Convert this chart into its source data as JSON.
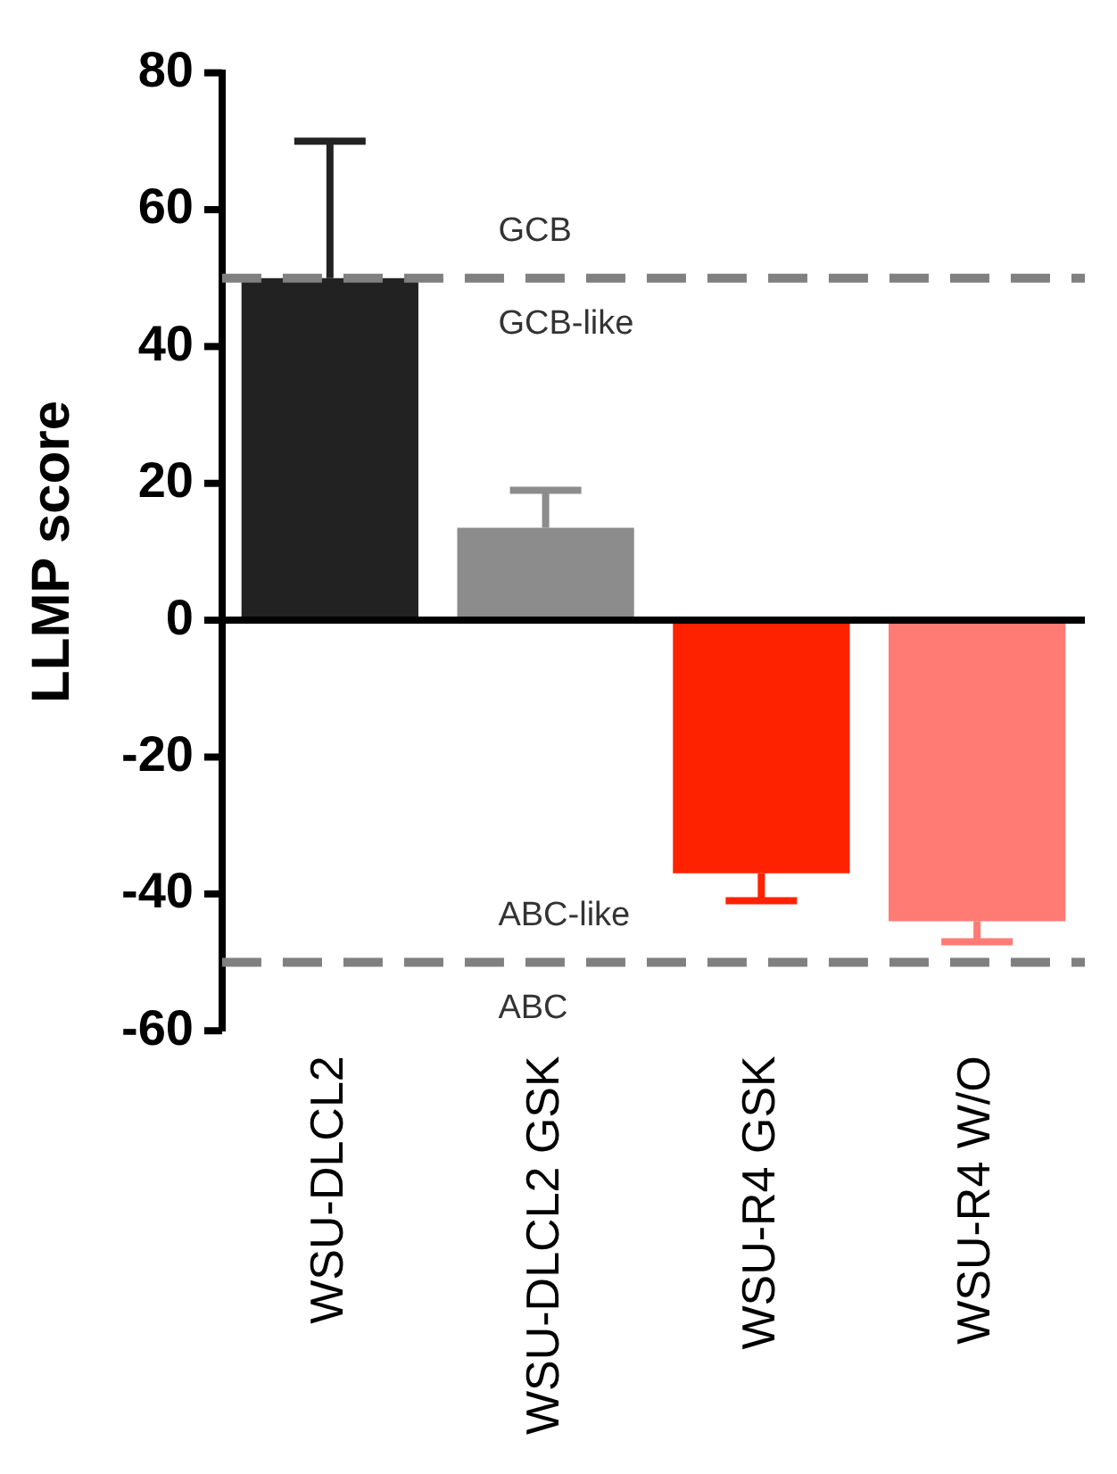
{
  "chart_data": {
    "type": "bar",
    "ylabel": "LLMP score",
    "categories": [
      "WSU-DLCL2",
      "WSU-DLCL2 GSK",
      "WSU-R4 GSK",
      "WSU-R4 W/O"
    ],
    "values": [
      50,
      13.5,
      -37,
      -44
    ],
    "colors": [
      "#222222",
      "#8c8c8c",
      "#ff2200",
      "#ff7b73"
    ],
    "errors": [
      [
        50,
        70
      ],
      [
        13.5,
        19
      ],
      [
        -41,
        -37
      ],
      [
        -47,
        -44
      ]
    ],
    "ylim": [
      -60,
      80
    ],
    "yticks": [
      -60,
      -40,
      -20,
      0,
      20,
      40,
      60,
      80
    ],
    "grid": false,
    "legend": false,
    "ref_lines": [
      {
        "axis": "y",
        "value": 0,
        "color": "#000000",
        "line_style": "solid"
      },
      {
        "axis": "y",
        "value": 50,
        "color": "#808080",
        "line_style": "dashed"
      },
      {
        "axis": "y",
        "value": -50,
        "color": "#808080",
        "line_style": "dashed"
      }
    ],
    "annotations": [
      "GCB",
      "GCB-like",
      "ABC-like",
      "ABC"
    ]
  }
}
